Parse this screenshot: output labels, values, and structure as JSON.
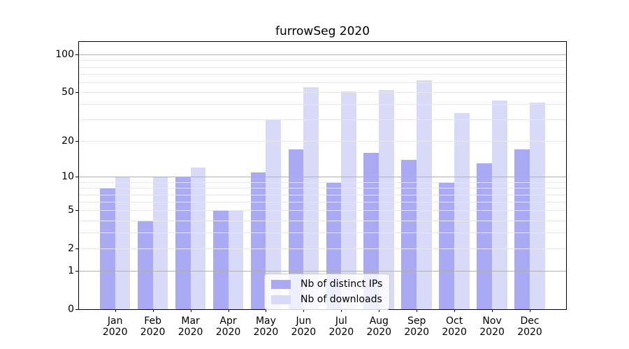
{
  "chart_data": {
    "type": "bar",
    "title": "furrowSeg 2020",
    "categories": [
      "Jan",
      "Feb",
      "Mar",
      "Apr",
      "May",
      "Jun",
      "Jul",
      "Aug",
      "Sep",
      "Oct",
      "Nov",
      "Dec"
    ],
    "x_year_label": "2020",
    "series": [
      {
        "name": "Nb of distinct IPs",
        "color": "#a9a9f4",
        "values": [
          8,
          4,
          10,
          5,
          11,
          17,
          9,
          16,
          14,
          9,
          13,
          17
        ]
      },
      {
        "name": "Nb of downloads",
        "color": "#d9d9f8",
        "values": [
          10,
          10,
          12,
          5,
          30,
          55,
          51,
          52,
          62,
          34,
          43,
          41
        ]
      }
    ],
    "ylabel": "",
    "xlabel": "",
    "y_scale": "log1p",
    "ylim": [
      0,
      126
    ],
    "yticks": [
      0,
      1,
      2,
      5,
      10,
      20,
      50,
      100
    ],
    "grid": {
      "on": true,
      "major_lines": [
        1,
        10,
        100
      ],
      "minor_lines": [
        2,
        3,
        4,
        5,
        6,
        7,
        8,
        9,
        20,
        30,
        40,
        50,
        60,
        70,
        80,
        90
      ],
      "major_color": "#b0b0b0",
      "minor_color": "#e7e7e7"
    },
    "legend_position": "lower center",
    "colors": {
      "background": "#ffffff",
      "spine": "#000000",
      "text": "#000000",
      "legend_border": "#cccccc"
    }
  }
}
